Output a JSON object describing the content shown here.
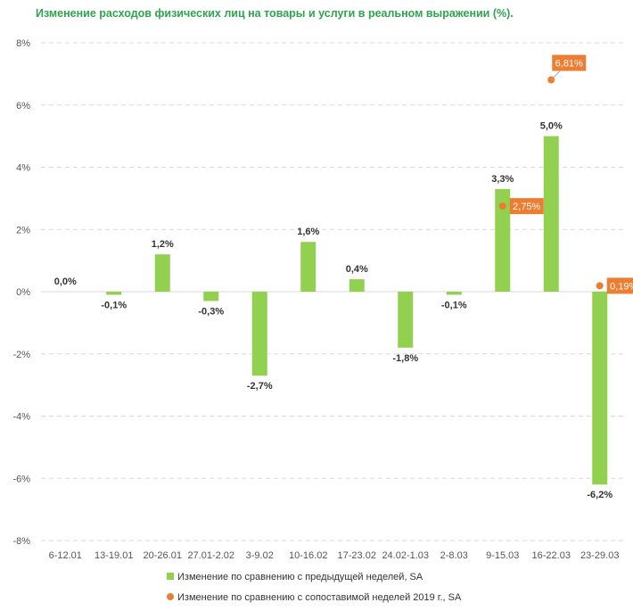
{
  "chart_data": {
    "type": "bar",
    "title": "Изменение расходов физических лиц на товары и услуги в реальном выражении (%).",
    "categories": [
      "6-12.01",
      "13-19.01",
      "20-26.01",
      "27.01-2.02",
      "3-9.02",
      "10-16.02",
      "17-23.02",
      "24.02-1.03",
      "2-8.03",
      "9-15.03",
      "16-22.03",
      "23-29.03"
    ],
    "yticks": [
      "8%",
      "6%",
      "4%",
      "2%",
      "0%",
      "-2%",
      "-4%",
      "-6%",
      "-8%"
    ],
    "ylim": [
      -8,
      8
    ],
    "grid": true,
    "legend_position": "bottom",
    "series": [
      {
        "name": "Изменение по сравнению с предыдущей неделей, SA",
        "kind": "bar",
        "color": "#92d050",
        "values": [
          0.0,
          -0.1,
          1.2,
          -0.3,
          -2.7,
          1.6,
          0.4,
          -1.8,
          -0.1,
          3.3,
          5.0,
          -6.2
        ],
        "labels": [
          "0,0%",
          "-0,1%",
          "1,2%",
          "-0,3%",
          "-2,7%",
          "1,6%",
          "0,4%",
          "-1,8%",
          "-0,1%",
          "3,3%",
          "5,0%",
          "-6,2%"
        ]
      },
      {
        "name": "Изменение по сравнению с сопоставимой неделей 2019 г., SA",
        "kind": "point",
        "color": "#ed7d31",
        "points": [
          {
            "category": "9-15.03",
            "value": 2.75,
            "label": "2,75%"
          },
          {
            "category": "16-22.03",
            "value": 6.81,
            "label": "6,81%"
          },
          {
            "category": "23-29.03",
            "value": 0.19,
            "label": "0,19%"
          }
        ]
      }
    ]
  }
}
